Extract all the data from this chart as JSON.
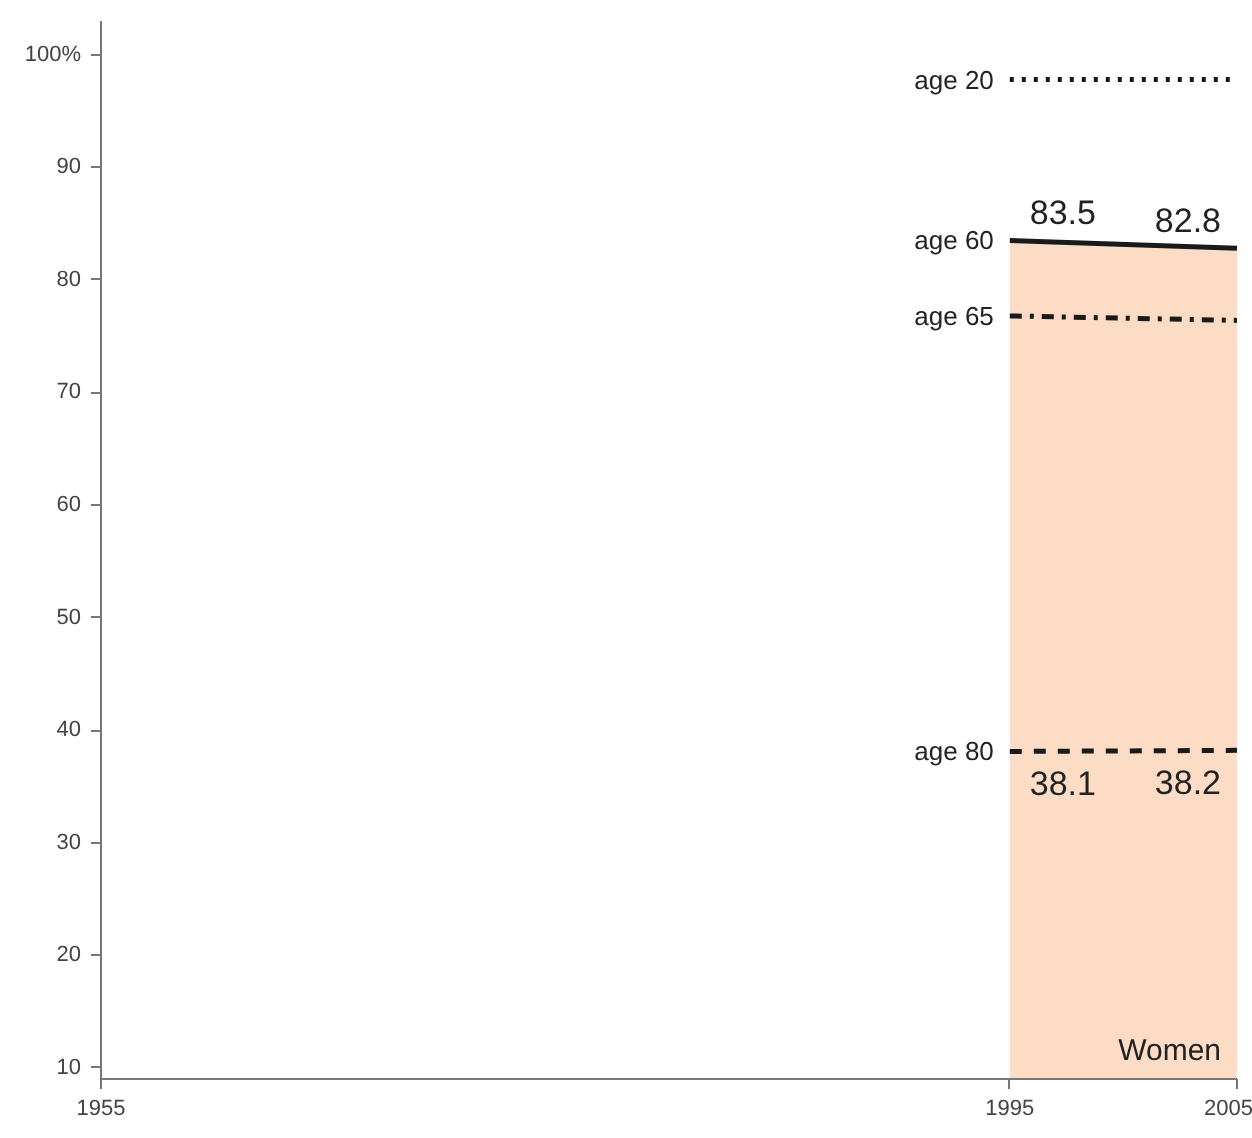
{
  "chart_data": {
    "type": "line",
    "x": [
      1995,
      2005
    ],
    "xlim": [
      1955,
      2005
    ],
    "xticks": [
      1955,
      1995,
      2005
    ],
    "ylim": [
      9,
      103
    ],
    "yticks": [
      10,
      20,
      30,
      40,
      50,
      60,
      70,
      80,
      90,
      {
        "value": 100,
        "label": "100%"
      }
    ],
    "grid": false,
    "marker": "none",
    "annotations": [
      {
        "text": "Women",
        "x": 2005,
        "y": 10
      }
    ],
    "series": [
      {
        "name": "age 20",
        "color": "#1a1a1a",
        "line_style": "dotted",
        "values": [
          97.8,
          97.8
        ]
      },
      {
        "name": "age 60",
        "type": "area",
        "color": "#fcdcc4",
        "values": [
          83.5,
          82.8
        ],
        "value_labels": [
          "83.5",
          "82.8"
        ]
      },
      {
        "name": "age 65",
        "color": "#1a1a1a",
        "line_style": "dashdot",
        "values": [
          76.8,
          76.4
        ]
      },
      {
        "name": "age 80",
        "color": "#1a1a1a",
        "line_style": "dashed",
        "values": [
          38.1,
          38.2
        ],
        "value_labels": [
          "38.1",
          "38.2"
        ]
      }
    ]
  }
}
